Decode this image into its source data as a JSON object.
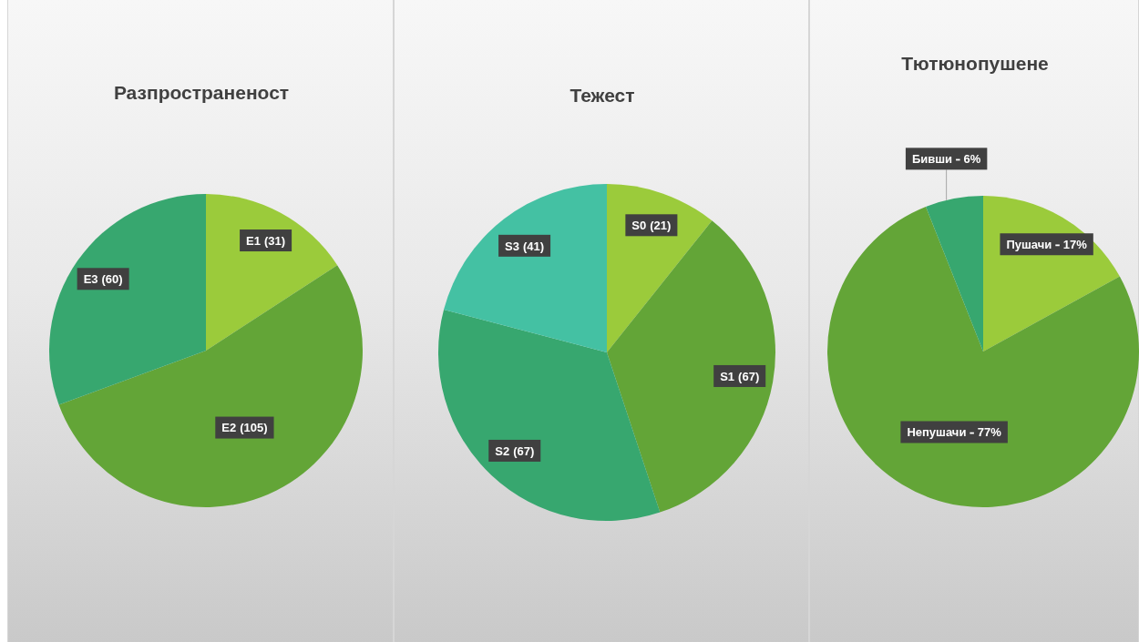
{
  "chart_data": [
    {
      "type": "pie",
      "title": "Разпространеност",
      "categories": [
        "E1",
        "E2",
        "E3"
      ],
      "values": [
        31,
        105,
        60
      ],
      "colors": [
        "#9bcb3b",
        "#63a537",
        "#37a76f"
      ],
      "value_labels": [
        "(31)",
        "(105)",
        "(60)"
      ]
    },
    {
      "type": "pie",
      "title": "Тежест",
      "categories": [
        "S0",
        "S1",
        "S2",
        "S3"
      ],
      "values": [
        21,
        67,
        67,
        41
      ],
      "colors": [
        "#9bcb3b",
        "#63a537",
        "#37a76f",
        "#44c1a3"
      ],
      "value_labels": [
        "(21)",
        "(67)",
        "(67)",
        "(41)"
      ]
    },
    {
      "type": "pie",
      "title": "Тютюнопушене",
      "categories": [
        "Пушачи",
        "Непушачи",
        "Бивши"
      ],
      "values": [
        17,
        77,
        6
      ],
      "colors": [
        "#9bcb3b",
        "#63a537",
        "#37a76f"
      ],
      "value_labels": [
        "17%",
        "77%",
        "6%"
      ]
    }
  ]
}
